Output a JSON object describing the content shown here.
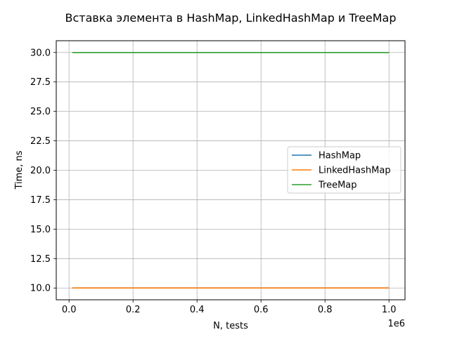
{
  "chart_data": {
    "type": "line",
    "title": "Вставка элемента в HashMap, LinkedHashMap и TreeMap",
    "xlabel": "N, tests",
    "ylabel": "Time, ns",
    "x_offset_label": "1e6",
    "xlim": [
      -40000,
      1050000
    ],
    "ylim": [
      9.0,
      31.0
    ],
    "grid": true,
    "legend_position": "center-right",
    "x_ticks": [
      0,
      200000,
      400000,
      600000,
      800000,
      1000000
    ],
    "x_tick_labels": [
      "0.0",
      "0.2",
      "0.4",
      "0.6",
      "0.8",
      "1.0"
    ],
    "y_ticks": [
      10.0,
      12.5,
      15.0,
      17.5,
      20.0,
      22.5,
      25.0,
      27.5,
      30.0
    ],
    "y_tick_labels": [
      "10.0",
      "12.5",
      "15.0",
      "17.5",
      "20.0",
      "22.5",
      "25.0",
      "27.5",
      "30.0"
    ],
    "series": [
      {
        "name": "HashMap",
        "color": "#1f77b4",
        "x": [
          10000,
          1000000
        ],
        "y": [
          10,
          10
        ]
      },
      {
        "name": "LinkedHashMap",
        "color": "#ff7f0e",
        "x": [
          10000,
          1000000
        ],
        "y": [
          10,
          10
        ]
      },
      {
        "name": "TreeMap",
        "color": "#2ca02c",
        "x": [
          10000,
          1000000
        ],
        "y": [
          30,
          30
        ]
      }
    ]
  }
}
